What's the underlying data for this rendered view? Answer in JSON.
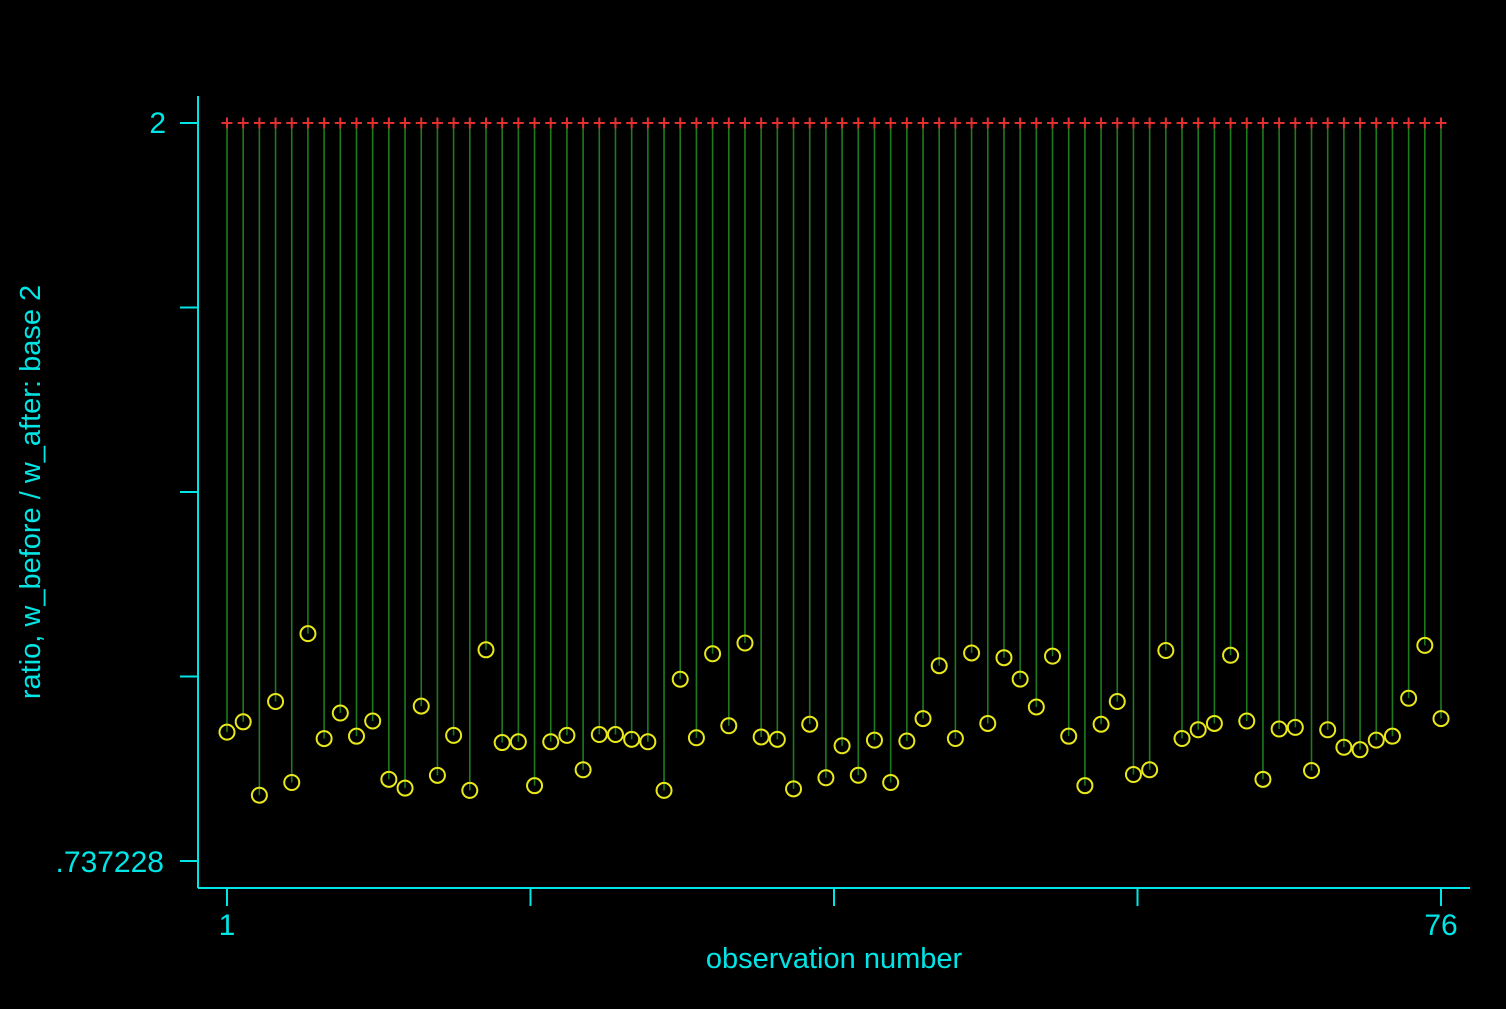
{
  "chart_data": {
    "type": "scatter",
    "title": "",
    "xlabel": "observation number",
    "ylabel": "ratio, w_before / w_after: base 2",
    "x_ticks_labeled": [
      "1",
      "76"
    ],
    "y_ticks_labeled": [
      "2",
      ".737228"
    ],
    "xlim": [
      1,
      76
    ],
    "ylim": [
      0.737228,
      2
    ],
    "grid": false,
    "legend": "none",
    "colors": {
      "background": "#000000",
      "axis": "#00e5e5",
      "spike": "#1f7a1f",
      "marker_top": "#e03030",
      "marker_value": "#e8e81a"
    },
    "series": [
      {
        "marker": "plus",
        "values": [
          2,
          2,
          2,
          2,
          2,
          2,
          2,
          2,
          2,
          2,
          2,
          2,
          2,
          2,
          2,
          2,
          2,
          2,
          2,
          2,
          2,
          2,
          2,
          2,
          2,
          2,
          2,
          2,
          2,
          2,
          2,
          2,
          2,
          2,
          2,
          2,
          2,
          2,
          2,
          2,
          2,
          2,
          2,
          2,
          2,
          2,
          2,
          2,
          2,
          2,
          2,
          2,
          2,
          2,
          2,
          2,
          2,
          2,
          2,
          2,
          2,
          2,
          2,
          2,
          2,
          2,
          2,
          2,
          2,
          2,
          2,
          2,
          2,
          2,
          2,
          2
        ]
      },
      {
        "marker": "circle",
        "values": [
          0.9577,
          0.9754,
          0.8498,
          1.0102,
          0.8715,
          1.1262,
          0.9467,
          0.9904,
          0.9508,
          0.9768,
          0.877,
          0.862,
          1.0023,
          0.8838,
          0.9522,
          0.858,
          1.0986,
          0.9399,
          0.9413,
          0.8661,
          0.9413,
          0.9522,
          0.8934,
          0.9536,
          0.9536,
          0.9454,
          0.9413,
          0.858,
          1.0483,
          0.9481,
          1.0919,
          0.9686,
          1.1102,
          0.9495,
          0.9454,
          0.8607,
          0.9713,
          0.8797,
          0.9344,
          0.8839,
          0.944,
          0.8716,
          0.9426,
          0.9809,
          1.0714,
          0.9468,
          1.0932,
          0.9726,
          1.0851,
          1.0484,
          1.0008,
          1.0878,
          0.9508,
          0.8661,
          0.9713,
          1.0102,
          0.8852,
          0.8934,
          1.0974,
          0.9468,
          0.9618,
          0.9726,
          1.0892,
          0.9768,
          0.877,
          0.9631,
          0.9659,
          0.892,
          0.9618,
          0.9318,
          0.9277,
          0.944,
          0.9508,
          1.0157,
          1.1061,
          0.9809
        ]
      }
    ]
  }
}
